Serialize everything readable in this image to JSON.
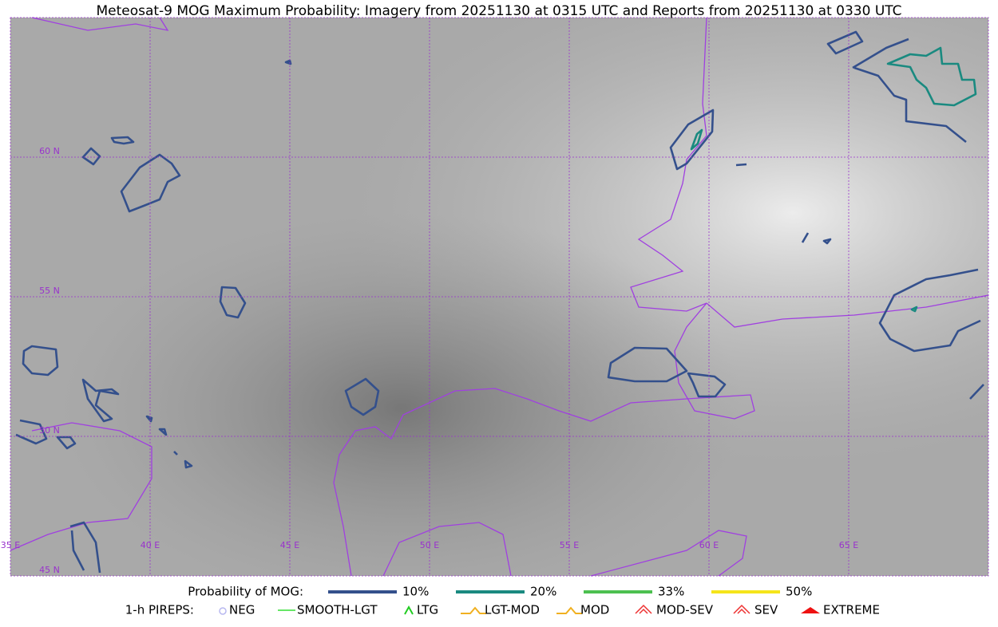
{
  "title": "Meteosat-9 MOG Maximum Probability: Imagery from 20251130 at 0315 UTC and Reports from 20251130 at 0330 UTC",
  "map": {
    "lat_labels": [
      "60 N",
      "55 N",
      "50 N",
      "45 N"
    ],
    "lon_labels": [
      "35 E",
      "40 E",
      "45 E",
      "50 E",
      "55 E",
      "60 E",
      "65 E"
    ]
  },
  "legend": {
    "mog_label": "Probability of MOG:",
    "mog_items": [
      {
        "label": "10%",
        "color": "#34508c"
      },
      {
        "label": "20%",
        "color": "#1a8a80"
      },
      {
        "label": "33%",
        "color": "#4cc050"
      },
      {
        "label": "50%",
        "color": "#f5e51a"
      }
    ],
    "pirep_label": "1-h PIREPS:",
    "pirep_items": [
      {
        "label": "NEG",
        "color": "#b8b8f0"
      },
      {
        "label": "SMOOTH-LGT",
        "color": "#33dd33"
      },
      {
        "label": "LTG",
        "color": "#22cc22"
      },
      {
        "label": "LGT-MOD",
        "color": "#f0b020"
      },
      {
        "label": "MOD",
        "color": "#f0b020"
      },
      {
        "label": "MOD-SEV",
        "color": "#ee3333"
      },
      {
        "label": "SEV",
        "color": "#ee3333"
      },
      {
        "label": "EXTREME",
        "color": "#ee1111"
      }
    ]
  }
}
